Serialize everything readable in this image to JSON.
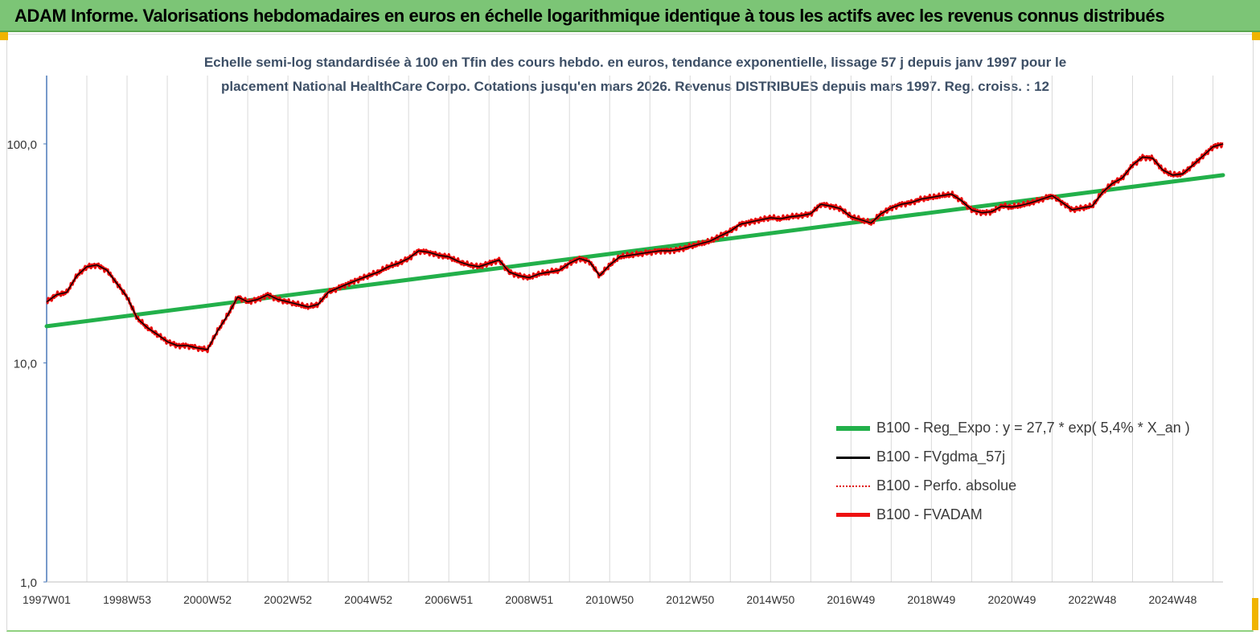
{
  "header": {
    "title": "ADAM Informe. Valorisations hebdomadaires en euros en échelle logarithmique identique à tous les actifs avec les revenus connus distribués"
  },
  "chart_data": {
    "type": "line",
    "title_line1": "Echelle semi-log standardisée à 100 en Tfin des cours hebdo. en euros, tendance exponentielle, lissage 57 j depuis janv 1997 pour le",
    "title_line2": "placement National HealthCare Corpo. Cotations jusqu'en mars 2026. Revenus DISTRIBUES depuis mars 1997. Reg. croiss. : 12",
    "y_scale": "log",
    "ylim": [
      1,
      100
    ],
    "y_ticks": [
      "1,0",
      "10,0",
      "100,0"
    ],
    "x_ticks": [
      "1997W01",
      "1998W53",
      "2000W52",
      "2002W52",
      "2004W52",
      "2006W51",
      "2008W51",
      "2010W50",
      "2012W50",
      "2014W50",
      "2016W49",
      "2018W49",
      "2020W49",
      "2022W48",
      "2024W48"
    ],
    "xlim": [
      1997.0,
      2026.25
    ],
    "grid": "vertical",
    "legend_position": "bottom-right",
    "series": [
      {
        "name": "B100 - Reg_Expo : y = 27,7 *  exp( 5,4% *  X_an )",
        "color": "#22b04a",
        "style": "thick",
        "x": [
          1997.0,
          2026.25
        ],
        "y": [
          14.7,
          72.0
        ]
      },
      {
        "name": "B100 - FVgdma_57j",
        "color": "#000000",
        "style": "thin"
      },
      {
        "name": "B100 - Perfo. absolue",
        "color": "#e00000",
        "style": "dotted"
      },
      {
        "name": "B100 - FVADAM",
        "color": "#ee1111",
        "style": "thick",
        "x": [
          1997.0,
          1997.25,
          1997.5,
          1997.75,
          1998.0,
          1998.25,
          1998.5,
          1998.75,
          1999.0,
          1999.25,
          1999.5,
          1999.75,
          2000.0,
          2000.25,
          2000.5,
          2000.75,
          2001.0,
          2001.25,
          2001.5,
          2001.75,
          2002.0,
          2002.25,
          2002.5,
          2002.75,
          2003.0,
          2003.25,
          2003.5,
          2003.75,
          2004.0,
          2004.25,
          2004.5,
          2004.75,
          2005.0,
          2005.25,
          2005.5,
          2005.75,
          2006.0,
          2006.25,
          2006.5,
          2006.75,
          2007.0,
          2007.25,
          2007.5,
          2007.75,
          2008.0,
          2008.25,
          2008.5,
          2008.75,
          2009.0,
          2009.25,
          2009.5,
          2009.75,
          2010.0,
          2010.25,
          2010.5,
          2010.75,
          2011.0,
          2011.25,
          2011.5,
          2011.75,
          2012.0,
          2012.25,
          2012.5,
          2012.75,
          2013.0,
          2013.25,
          2013.5,
          2013.75,
          2014.0,
          2014.25,
          2014.5,
          2014.75,
          2015.0,
          2015.25,
          2015.5,
          2015.75,
          2016.0,
          2016.25,
          2016.5,
          2016.75,
          2017.0,
          2017.25,
          2017.5,
          2017.75,
          2018.0,
          2018.25,
          2018.5,
          2018.75,
          2019.0,
          2019.25,
          2019.5,
          2019.75,
          2020.0,
          2020.25,
          2020.5,
          2020.75,
          2021.0,
          2021.25,
          2021.5,
          2021.75,
          2022.0,
          2022.25,
          2022.5,
          2022.75,
          2023.0,
          2023.25,
          2023.5,
          2023.75,
          2024.0,
          2024.25,
          2024.5,
          2024.75,
          2025.0,
          2025.25,
          2025.5,
          2025.75,
          2026.0,
          2026.25
        ],
        "y": [
          19.0,
          20.5,
          21.0,
          25.0,
          27.5,
          28.0,
          26.5,
          23.0,
          20.0,
          16.0,
          14.5,
          13.5,
          12.5,
          12.0,
          12.0,
          11.7,
          11.5,
          14.0,
          16.5,
          20.0,
          19.0,
          19.5,
          20.5,
          19.5,
          19.0,
          18.5,
          18.0,
          18.5,
          21.0,
          22.0,
          23.0,
          24.0,
          25.0,
          26.0,
          27.5,
          28.5,
          30.0,
          32.5,
          32.0,
          31.0,
          30.5,
          29.0,
          28.0,
          27.5,
          28.5,
          29.5,
          26.0,
          25.0,
          24.5,
          25.5,
          26.0,
          26.5,
          28.5,
          30.0,
          29.0,
          25.0,
          28.0,
          30.5,
          31.0,
          31.5,
          32.0,
          32.5,
          32.5,
          33.0,
          34.0,
          35.0,
          36.0,
          38.0,
          40.0,
          43.0,
          44.0,
          45.0,
          46.0,
          45.5,
          46.5,
          47.0,
          48.0,
          53.0,
          52.0,
          50.5,
          46.5,
          45.0,
          43.5,
          48.0,
          51.0,
          53.0,
          54.0,
          56.0,
          57.0,
          58.0,
          59.0,
          55.0,
          50.0,
          48.5,
          49.0,
          52.0,
          51.5,
          52.5,
          54.0,
          56.0,
          58.0,
          54.0,
          50.0,
          51.0,
          52.0,
          60.0,
          66.0,
          70.0,
          80.0,
          87.0,
          86.0,
          76.0,
          72.0,
          73.0,
          80.0,
          88.0,
          97.0,
          100.0
        ]
      }
    ]
  }
}
